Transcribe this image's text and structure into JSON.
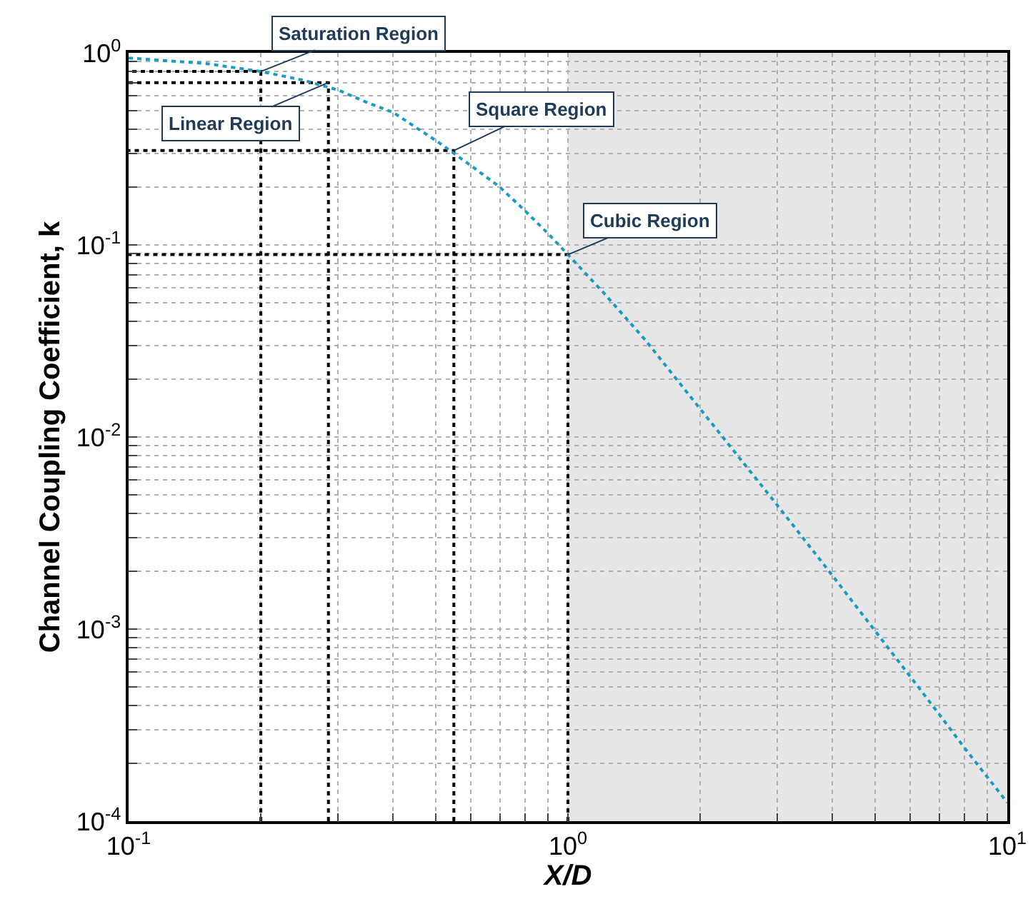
{
  "chart_data": {
    "type": "line",
    "xlabel": "X/D",
    "ylabel": "Channel Coupling Coefficient, k",
    "log": "xy",
    "grid": true,
    "xlim": [
      0.1,
      10
    ],
    "ylim": [
      0.0001,
      1
    ],
    "xticks": [
      {
        "value": 0.1,
        "label": "10$^{-1}$"
      },
      {
        "value": 0.2,
        "label": null
      },
      {
        "value": 0.3,
        "label": null
      },
      {
        "value": 0.4,
        "label": null
      },
      {
        "value": 0.5,
        "label": null
      },
      {
        "value": 0.6,
        "label": null
      },
      {
        "value": 0.7,
        "label": null
      },
      {
        "value": 0.8,
        "label": null
      },
      {
        "value": 0.9,
        "label": null
      },
      {
        "value": 1,
        "label": "10$^{0}$"
      },
      {
        "value": 2,
        "label": null
      },
      {
        "value": 3,
        "label": null
      },
      {
        "value": 4,
        "label": null
      },
      {
        "value": 5,
        "label": null
      },
      {
        "value": 6,
        "label": null
      },
      {
        "value": 7,
        "label": null
      },
      {
        "value": 8,
        "label": null
      },
      {
        "value": 9,
        "label": null
      },
      {
        "value": 10,
        "label": "10$^{1}$"
      }
    ],
    "yticks": [
      {
        "value": 0.0001,
        "label": "10$^{-4}$"
      },
      {
        "value": 0.0002,
        "label": null
      },
      {
        "value": 0.0003,
        "label": null
      },
      {
        "value": 0.0004,
        "label": null
      },
      {
        "value": 0.0005,
        "label": null
      },
      {
        "value": 0.0006,
        "label": null
      },
      {
        "value": 0.0007,
        "label": null
      },
      {
        "value": 0.0008,
        "label": null
      },
      {
        "value": 0.0009,
        "label": null
      },
      {
        "value": 0.001,
        "label": "10$^{-3}$"
      },
      {
        "value": 0.002,
        "label": null
      },
      {
        "value": 0.003,
        "label": null
      },
      {
        "value": 0.004,
        "label": null
      },
      {
        "value": 0.005,
        "label": null
      },
      {
        "value": 0.006,
        "label": null
      },
      {
        "value": 0.007,
        "label": null
      },
      {
        "value": 0.008,
        "label": null
      },
      {
        "value": 0.009,
        "label": null
      },
      {
        "value": 0.01,
        "label": "10$^{-2}$"
      },
      {
        "value": 0.02,
        "label": null
      },
      {
        "value": 0.03,
        "label": null
      },
      {
        "value": 0.04,
        "label": null
      },
      {
        "value": 0.05,
        "label": null
      },
      {
        "value": 0.06,
        "label": null
      },
      {
        "value": 0.07,
        "label": null
      },
      {
        "value": 0.08,
        "label": null
      },
      {
        "value": 0.09,
        "label": null
      },
      {
        "value": 0.1,
        "label": "10$^{-1}$"
      },
      {
        "value": 0.2,
        "label": null
      },
      {
        "value": 0.3,
        "label": null
      },
      {
        "value": 0.4,
        "label": null
      },
      {
        "value": 0.5,
        "label": null
      },
      {
        "value": 0.6,
        "label": null
      },
      {
        "value": 0.7,
        "label": null
      },
      {
        "value": 0.8,
        "label": null
      },
      {
        "value": 0.9,
        "label": null
      },
      {
        "value": 1,
        "label": "10$^{0}$"
      }
    ],
    "bands": [
      {
        "axis": "x",
        "from": 1,
        "to": 10,
        "color": "#e6e6e6"
      }
    ],
    "annotations": [
      {
        "text": "Saturation Region",
        "x": 0.2,
        "y": 0.8
      },
      {
        "text": "Linear Region",
        "x": 0.285,
        "y": 0.7
      },
      {
        "text": "Square Region",
        "x": 0.55,
        "y": 0.31
      },
      {
        "text": "Cubic Region",
        "x": 1,
        "y": 0.089
      }
    ],
    "series": [
      {
        "color": "#000000",
        "line_style": "dotted",
        "marker": "none",
        "x": [
          0.2,
          0.2,
          0.1
        ],
        "values": [
          0.0001,
          0.8,
          0.8
        ]
      },
      {
        "color": "#000000",
        "line_style": "dotted",
        "marker": "none",
        "x": [
          0.285,
          0.285,
          0.1
        ],
        "values": [
          0.0001,
          0.7,
          0.7
        ]
      },
      {
        "color": "#000000",
        "line_style": "dotted",
        "marker": "none",
        "x": [
          0.55,
          0.55,
          0.1
        ],
        "values": [
          0.0001,
          0.31,
          0.31
        ]
      },
      {
        "color": "#000000",
        "line_style": "dotted",
        "marker": "none",
        "x": [
          1,
          1,
          0.1
        ],
        "values": [
          0.0001,
          0.089,
          0.089
        ]
      },
      {
        "color": "#1a9bc4",
        "line_style": "dotted",
        "marker": "none",
        "x": [
          0.1,
          0.15,
          0.2,
          0.25,
          0.3,
          0.35,
          0.4,
          0.45,
          0.5,
          0.6,
          0.7,
          0.8,
          0.9,
          1,
          1.2,
          1.5,
          2,
          3,
          4,
          5,
          6,
          7,
          8,
          10
        ],
        "values": [
          0.94,
          0.88,
          0.8,
          0.72,
          0.64,
          0.55,
          0.49,
          0.41,
          0.35,
          0.26,
          0.2,
          0.15,
          0.115,
          0.089,
          0.057,
          0.032,
          0.014,
          0.0044,
          0.0019,
          0.00098,
          0.00057,
          0.00036,
          0.00024,
          0.000125
        ]
      }
    ]
  }
}
